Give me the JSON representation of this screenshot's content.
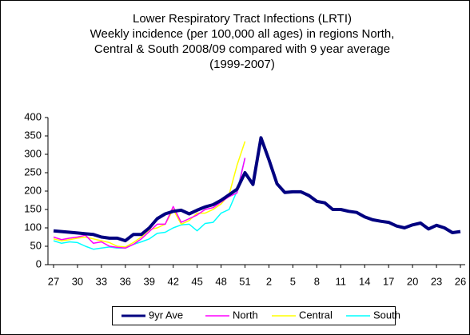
{
  "chart_data": {
    "type": "line",
    "title": [
      "Lower Respiratory Tract Infections (LRTI)",
      "Weekly incidence (per 100,000 all ages) in regions North,",
      "Central & South 2008/09 compared with 9 year average",
      "(1999-2007)"
    ],
    "categories": [
      "27",
      null,
      null,
      "30",
      null,
      null,
      "33",
      null,
      null,
      "36",
      null,
      null,
      "39",
      null,
      null,
      "42",
      null,
      null,
      "45",
      null,
      null,
      "48",
      null,
      null,
      "51",
      null,
      null,
      "2",
      null,
      null,
      "5",
      null,
      null,
      "8",
      null,
      null,
      "11",
      null,
      null,
      "14",
      null,
      null,
      "17",
      null,
      null,
      "20",
      null,
      null,
      "23",
      null,
      null,
      "26"
    ],
    "series": [
      {
        "name": "9yr Ave",
        "color": "#000080",
        "values": [
          92,
          90,
          88,
          86,
          84,
          82,
          75,
          72,
          72,
          65,
          82,
          82,
          100,
          125,
          138,
          145,
          148,
          138,
          148,
          157,
          163,
          175,
          190,
          205,
          250,
          218,
          345,
          285,
          220,
          196,
          198,
          198,
          188,
          172,
          168,
          150,
          150,
          145,
          142,
          130,
          122,
          118,
          115,
          105,
          100,
          108,
          113,
          97,
          107,
          100,
          87,
          90
        ]
      },
      {
        "name": "North",
        "color": "#ff00ff",
        "values": [
          75,
          68,
          72,
          75,
          80,
          58,
          62,
          50,
          47,
          45,
          55,
          70,
          90,
          110,
          110,
          158,
          115,
          125,
          135,
          150,
          155,
          170,
          185,
          195,
          290,
          null,
          null,
          null,
          null,
          null,
          null,
          null,
          null,
          null,
          null,
          null,
          null,
          null,
          null,
          null,
          null,
          null,
          null,
          null,
          null,
          null,
          null,
          null,
          null,
          null,
          null,
          null
        ]
      },
      {
        "name": "Central",
        "color": "#ffff00",
        "values": [
          70,
          65,
          68,
          72,
          75,
          70,
          65,
          60,
          50,
          48,
          60,
          75,
          95,
          100,
          110,
          150,
          110,
          120,
          140,
          140,
          150,
          165,
          190,
          270,
          335,
          null,
          null,
          null,
          null,
          null,
          null,
          null,
          null,
          null,
          null,
          null,
          null,
          null,
          null,
          null,
          null,
          null,
          null,
          null,
          null,
          null,
          null,
          null,
          null,
          null,
          null,
          null
        ]
      },
      {
        "name": "South",
        "color": "#00ffff",
        "values": [
          65,
          58,
          62,
          60,
          50,
          42,
          45,
          48,
          45,
          45,
          55,
          62,
          70,
          85,
          88,
          100,
          108,
          110,
          92,
          112,
          115,
          140,
          150,
          200,
          290,
          null,
          null,
          null,
          null,
          null,
          null,
          null,
          null,
          null,
          null,
          null,
          null,
          null,
          null,
          null,
          null,
          null,
          null,
          null,
          null,
          null,
          null,
          null,
          null,
          null,
          null,
          null
        ]
      }
    ],
    "ylim": [
      0,
      400
    ],
    "yticks": [
      0,
      50,
      100,
      150,
      200,
      250,
      300,
      350,
      400
    ],
    "legend": "bottom"
  }
}
